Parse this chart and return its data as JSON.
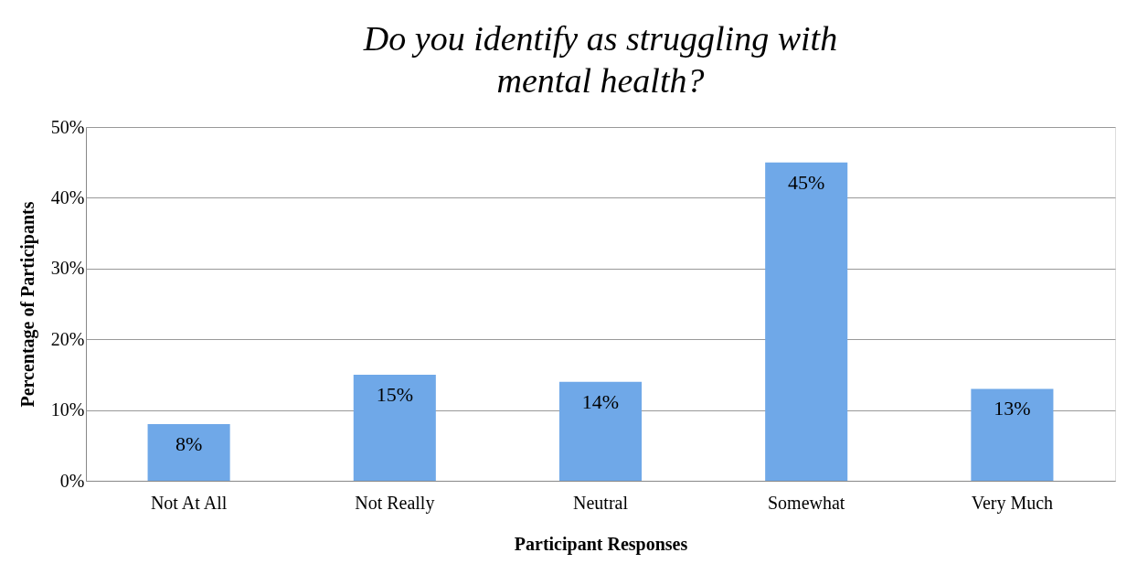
{
  "chart_data": {
    "type": "bar",
    "title": "Do you identify as struggling with\nmental health?",
    "xlabel": "Participant Responses",
    "ylabel": "Percentage of Participants",
    "categories": [
      "Not At All",
      "Not Really",
      "Neutral",
      "Somewhat",
      "Very Much"
    ],
    "values": [
      8,
      15,
      14,
      45,
      13
    ],
    "value_labels": [
      "8%",
      "15%",
      "14%",
      "45%",
      "13%"
    ],
    "color": "#6fa8e8",
    "ylim": [
      0,
      50
    ],
    "yticks": [
      {
        "value": 0,
        "label": "0%"
      },
      {
        "value": 10,
        "label": "10%"
      },
      {
        "value": 20,
        "label": "20%"
      },
      {
        "value": 30,
        "label": "30%"
      },
      {
        "value": 40,
        "label": "40%"
      },
      {
        "value": 50,
        "label": "50%"
      }
    ],
    "grid": "y"
  }
}
